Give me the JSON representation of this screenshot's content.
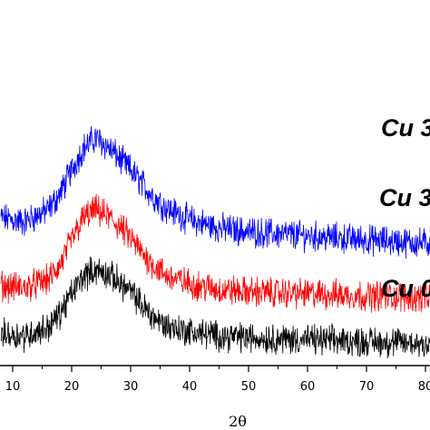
{
  "chart_data": {
    "type": "line",
    "title": "",
    "xlabel": "2θ",
    "ylabel": "",
    "xlim": [
      8,
      82
    ],
    "x_ticks": [
      10,
      20,
      30,
      40,
      50,
      60,
      70,
      80
    ],
    "x_tick_labels": [
      "10",
      "20",
      "30",
      "40",
      "50",
      "60",
      "70",
      "80"
    ],
    "grid": false,
    "legend": "inline labels at right",
    "series": [
      {
        "name": "Cu 3",
        "color": "#0000ff",
        "noise": 0.6,
        "x": [
          8,
          12,
          16,
          18,
          20,
          22,
          24,
          26,
          28,
          30,
          32,
          34,
          36,
          40,
          45,
          50,
          60,
          70,
          82
        ],
        "y": [
          7.4,
          7.2,
          7.8,
          8.6,
          9.8,
          10.9,
          11.4,
          11.0,
          10.4,
          9.8,
          9.1,
          8.4,
          7.9,
          7.3,
          6.9,
          6.7,
          6.5,
          6.3,
          6.1
        ]
      },
      {
        "name": "Cu 3",
        "color": "#ff0000",
        "noise": 0.6,
        "x": [
          8,
          12,
          16,
          18,
          20,
          22,
          24,
          26,
          28,
          30,
          32,
          34,
          36,
          40,
          45,
          50,
          60,
          70,
          82
        ],
        "y": [
          4.0,
          3.9,
          4.3,
          5.0,
          6.3,
          7.4,
          7.8,
          7.5,
          7.0,
          6.4,
          5.6,
          5.0,
          4.5,
          4.1,
          3.8,
          3.7,
          3.6,
          3.5,
          3.4
        ]
      },
      {
        "name": "Cu 0",
        "color": "#000000",
        "noise": 0.6,
        "x": [
          8,
          12,
          16,
          18,
          20,
          22,
          24,
          26,
          28,
          30,
          32,
          34,
          36,
          40,
          45,
          50,
          60,
          70,
          82
        ],
        "y": [
          1.6,
          1.5,
          1.9,
          2.6,
          3.6,
          4.5,
          4.8,
          4.6,
          4.2,
          3.7,
          3.0,
          2.4,
          2.0,
          1.7,
          1.5,
          1.4,
          1.3,
          1.2,
          1.1
        ]
      }
    ]
  }
}
